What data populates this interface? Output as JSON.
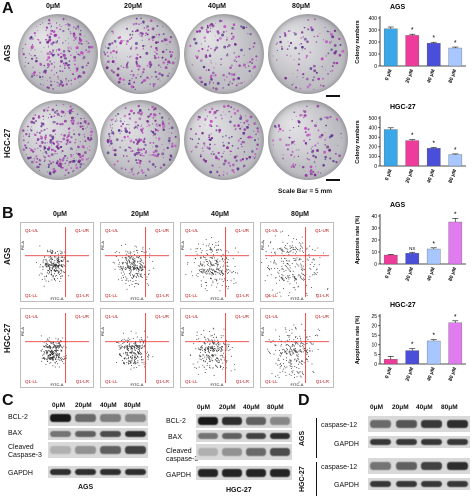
{
  "panelA": {
    "letter": "A",
    "conc_headers": [
      "0μM",
      "20μM",
      "40μM",
      "80μM"
    ],
    "rows": [
      "AGS",
      "HGC-27"
    ],
    "scale_bar_text": "Scale Bar = 5 mm",
    "colony_colors": [
      "#7a2d8c",
      "#9b3aa8",
      "#c24bc0",
      "#5a3a8e"
    ]
  },
  "panelB": {
    "letter": "B",
    "conc_headers": [
      "0μM",
      "20μM",
      "40μM",
      "80μM"
    ],
    "rows": [
      "AGS",
      "HGC-27"
    ],
    "axis_x": "FITC-A",
    "axis_y": "PE-A",
    "quadrants": [
      [
        "Q1-UL",
        "Q1-UR",
        "Q1-LL",
        "Q1-LR"
      ],
      [
        "Q1-UL",
        "Q1-UR",
        "Q1-LL",
        "Q1-LR"
      ],
      [
        "Q1-UL",
        "Q1-UR",
        "Q1-LL",
        "Q1-LR"
      ],
      [
        "Q1-UL",
        "Q1-UR",
        "Q1-LL",
        "Q1-LR"
      ],
      [
        "Q1-UL",
        "Q1-UR",
        "Q1-LL",
        "Q1-LR"
      ],
      [
        "Q1-UL",
        "Q1-UR",
        "Q1-LL",
        "Q1-LR"
      ],
      [
        "Q1-UL",
        "Q1-UR",
        "Q1-LL",
        "Q1-LR"
      ],
      [
        "Q1-UL",
        "Q1-UR",
        "Q1-LL",
        "Q1-LR"
      ]
    ]
  },
  "panelC": {
    "letter": "C",
    "ags": {
      "headers": [
        "0μM",
        "20μM",
        "40μM",
        "80μM"
      ],
      "bands": [
        "BCL-2",
        "BAX",
        "Cleaved",
        "Caspase-3",
        "GAPDH"
      ],
      "label": "AGS"
    },
    "hgc": {
      "headers": [
        "0μM",
        "20μM",
        "40μM",
        "80μM"
      ],
      "bands": [
        "BCL-2",
        "BAX",
        "Cleaved",
        "caspase-3",
        "GAPDH"
      ],
      "label": "HGC-27"
    }
  },
  "panelD": {
    "letter": "D",
    "headers": [
      "0μM",
      "20μM",
      "40μM",
      "80μM"
    ],
    "groups": [
      "AGS",
      "HGC-27"
    ],
    "bands": [
      "caspase-12",
      "GAPDH",
      "caspase-12",
      "GAPDH"
    ]
  },
  "chart_data": [
    {
      "type": "bar",
      "title": "AGS",
      "ylabel": "Colony numbers",
      "categories": [
        "0 μM",
        "20 μM",
        "40 μM",
        "80 μM"
      ],
      "values": [
        310,
        255,
        190,
        150
      ],
      "errors": [
        15,
        10,
        8,
        8
      ],
      "ylim": [
        0,
        400
      ],
      "yticks": [
        0,
        100,
        200,
        300,
        400
      ],
      "significance": [
        "",
        "*",
        "*",
        "*"
      ],
      "colors": [
        "#39a7e8",
        "#ee3c9a",
        "#4a4ed8",
        "#a9c7ff"
      ]
    },
    {
      "type": "bar",
      "title": "HGC-27",
      "ylabel": "Colony numbers",
      "categories": [
        "0 μM",
        "20 μM",
        "40 μM",
        "80 μM"
      ],
      "values": [
        380,
        265,
        185,
        120
      ],
      "errors": [
        18,
        10,
        8,
        6
      ],
      "ylim": [
        0,
        500
      ],
      "yticks": [
        0,
        100,
        200,
        300,
        400,
        500
      ],
      "significance": [
        "",
        "*",
        "*",
        "*"
      ],
      "colors": [
        "#39a7e8",
        "#ee3c9a",
        "#4a4ed8",
        "#a9c7ff"
      ]
    },
    {
      "type": "bar",
      "title": "AGS",
      "ylabel": "Apoptosis rate (%)",
      "categories": [
        "0 μM",
        "20 μM",
        "40 μM",
        "80 μM"
      ],
      "values": [
        7.5,
        9.0,
        12.5,
        35.0
      ],
      "errors": [
        0.5,
        0.8,
        1.0,
        3.0
      ],
      "ylim": [
        0,
        40
      ],
      "yticks": [
        0,
        10,
        20,
        30,
        40
      ],
      "significance": [
        "",
        "NS",
        "*",
        "*"
      ],
      "colors": [
        "#ee3c9a",
        "#4a4ed8",
        "#a9c7ff",
        "#e17cf0"
      ]
    },
    {
      "type": "bar",
      "title": "HGC-27",
      "ylabel": "Apoptosis rate (%)",
      "categories": [
        "0 μM",
        "20 μM",
        "40 μM",
        "80 μM"
      ],
      "values": [
        2.5,
        7.0,
        12.0,
        21.5
      ],
      "errors": [
        1.5,
        1.0,
        0.7,
        1.0
      ],
      "ylim": [
        0,
        25
      ],
      "yticks": [
        0,
        5,
        10,
        15,
        20,
        25
      ],
      "significance": [
        "",
        "*",
        "*",
        "*"
      ],
      "colors": [
        "#ee3c9a",
        "#4a4ed8",
        "#a9c7ff",
        "#e17cf0"
      ]
    }
  ]
}
